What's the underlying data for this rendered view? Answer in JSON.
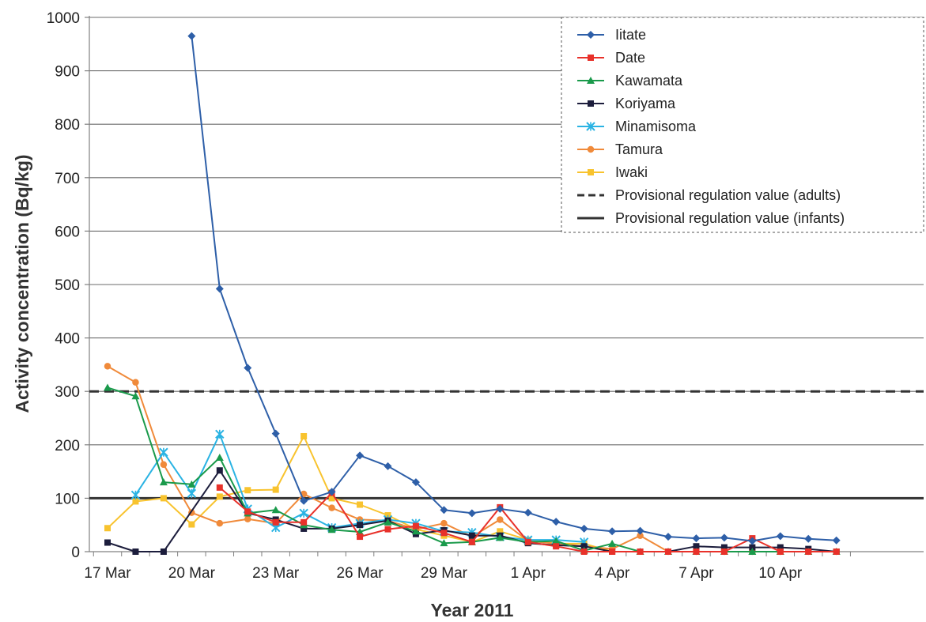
{
  "chart_data": {
    "type": "line",
    "title": "",
    "xlabel": "Year 2011",
    "ylabel": "Activity concentration (Bq/kg)",
    "ylim": [
      0,
      1000
    ],
    "yticks": [
      0,
      100,
      200,
      300,
      400,
      500,
      600,
      700,
      800,
      900,
      1000
    ],
    "x_start_date": "2011-03-17",
    "x_end_date": "2011-04-12",
    "xticks": [
      {
        "date": "2011-03-17",
        "label": "17 Mar"
      },
      {
        "date": "2011-03-20",
        "label": "20 Mar"
      },
      {
        "date": "2011-03-23",
        "label": "23 Mar"
      },
      {
        "date": "2011-03-26",
        "label": "26 Mar"
      },
      {
        "date": "2011-03-29",
        "label": "29 Mar"
      },
      {
        "date": "2011-04-01",
        "label": "1 Apr"
      },
      {
        "date": "2011-04-04",
        "label": "4 Apr"
      },
      {
        "date": "2011-04-07",
        "label": "7 Apr"
      },
      {
        "date": "2011-04-10",
        "label": "10 Apr"
      }
    ],
    "grid": true,
    "legend_position": "top-right",
    "series": [
      {
        "name": "Iitate",
        "color": "#2e5fa8",
        "marker": "diamond",
        "x": [
          "2011-03-20",
          "2011-03-21",
          "2011-03-22",
          "2011-03-23",
          "2011-03-24",
          "2011-03-25",
          "2011-03-26",
          "2011-03-27",
          "2011-03-28",
          "2011-03-29",
          "2011-03-30",
          "2011-03-31",
          "2011-04-01",
          "2011-04-02",
          "2011-04-03",
          "2011-04-04",
          "2011-04-05",
          "2011-04-06",
          "2011-04-07",
          "2011-04-08",
          "2011-04-09",
          "2011-04-10",
          "2011-04-11",
          "2011-04-12"
        ],
        "y": [
          965,
          492,
          344,
          221,
          95,
          112,
          180,
          160,
          130,
          78,
          72,
          80,
          73,
          56,
          43,
          38,
          39,
          28,
          25,
          26,
          20,
          29,
          24,
          21
        ]
      },
      {
        "name": "Date",
        "color": "#e8312a",
        "marker": "square",
        "x": [
          "2011-03-21",
          "2011-03-22",
          "2011-03-23",
          "2011-03-24",
          "2011-03-25",
          "2011-03-26",
          "2011-03-27",
          "2011-03-28",
          "2011-03-29",
          "2011-03-30",
          "2011-03-31",
          "2011-04-01",
          "2011-04-02",
          "2011-04-03",
          "2011-04-04",
          "2011-04-05",
          "2011-04-06",
          "2011-04-07",
          "2011-04-08",
          "2011-04-09",
          "2011-04-10",
          "2011-04-11",
          "2011-04-12"
        ],
        "y": [
          120,
          75,
          55,
          55,
          110,
          28,
          42,
          48,
          35,
          18,
          83,
          18,
          10,
          0,
          0,
          0,
          0,
          0,
          0,
          25,
          0,
          0,
          0
        ]
      },
      {
        "name": "Kawamata",
        "color": "#1a9a4b",
        "marker": "triangle",
        "x": [
          "2011-03-17",
          "2011-03-18",
          "2011-03-19",
          "2011-03-20",
          "2011-03-21",
          "2011-03-22",
          "2011-03-23",
          "2011-03-24",
          "2011-03-25",
          "2011-03-26",
          "2011-03-27",
          "2011-03-28",
          "2011-03-29",
          "2011-03-30",
          "2011-03-31",
          "2011-04-01",
          "2011-04-02",
          "2011-04-03",
          "2011-04-04",
          "2011-04-05",
          "2011-04-06",
          "2011-04-07",
          "2011-04-08",
          "2011-04-09",
          "2011-04-10",
          "2011-04-11",
          "2011-04-12"
        ],
        "y": [
          307,
          291,
          130,
          126,
          176,
          72,
          78,
          50,
          41,
          37,
          55,
          38,
          16,
          18,
          26,
          18,
          20,
          2,
          15,
          0,
          0,
          0,
          0,
          0,
          0,
          0,
          0
        ]
      },
      {
        "name": "Koriyama",
        "color": "#1c1d3c",
        "marker": "square",
        "x": [
          "2011-03-17",
          "2011-03-18",
          "2011-03-19",
          "2011-03-21",
          "2011-03-22",
          "2011-03-23",
          "2011-03-24",
          "2011-03-25",
          "2011-03-26",
          "2011-03-27",
          "2011-03-28",
          "2011-03-29",
          "2011-03-30",
          "2011-03-31",
          "2011-04-01",
          "2011-04-02",
          "2011-04-03",
          "2011-04-04",
          "2011-04-05",
          "2011-04-06",
          "2011-04-07",
          "2011-04-08",
          "2011-04-09",
          "2011-04-10",
          "2011-04-11",
          "2011-04-12"
        ],
        "y": [
          17,
          0,
          0,
          152,
          72,
          60,
          43,
          43,
          50,
          58,
          33,
          40,
          30,
          30,
          16,
          12,
          10,
          0,
          0,
          0,
          10,
          8,
          8,
          8,
          5,
          0
        ]
      },
      {
        "name": "Minamisoma",
        "color": "#2ab3e3",
        "marker": "x",
        "x": [
          "2011-03-18",
          "2011-03-19",
          "2011-03-20",
          "2011-03-21",
          "2011-03-22",
          "2011-03-23",
          "2011-03-24",
          "2011-03-25",
          "2011-03-26",
          "2011-03-27",
          "2011-03-28",
          "2011-03-29",
          "2011-03-30",
          "2011-03-31",
          "2011-04-01",
          "2011-04-02",
          "2011-04-03"
        ],
        "y": [
          106,
          186,
          109,
          220,
          80,
          45,
          72,
          45,
          53,
          60,
          53,
          38,
          36,
          28,
          22,
          22,
          18
        ]
      },
      {
        "name": "Tamura",
        "color": "#f08a3a",
        "marker": "circle",
        "x": [
          "2011-03-17",
          "2011-03-18",
          "2011-03-19",
          "2011-03-20",
          "2011-03-21",
          "2011-03-22",
          "2011-03-23",
          "2011-03-24",
          "2011-03-25",
          "2011-03-26",
          "2011-03-27",
          "2011-03-28",
          "2011-03-29",
          "2011-03-30",
          "2011-03-31",
          "2011-04-01",
          "2011-04-02",
          "2011-04-03",
          "2011-04-04",
          "2011-04-05",
          "2011-04-06",
          "2011-04-07",
          "2011-04-08",
          "2011-04-09",
          "2011-04-10",
          "2011-04-11",
          "2011-04-12"
        ],
        "y": [
          347,
          317,
          163,
          73,
          53,
          61,
          53,
          108,
          82,
          60,
          58,
          42,
          53,
          28,
          60,
          20,
          15,
          10,
          5,
          30,
          0,
          0,
          0,
          0,
          0,
          0,
          0
        ]
      },
      {
        "name": "Iwaki",
        "color": "#f8c32e",
        "marker": "square",
        "x": [
          "2011-03-17",
          "2011-03-18",
          "2011-03-19",
          "2011-03-20",
          "2011-03-21",
          "2011-03-22",
          "2011-03-23",
          "2011-03-24",
          "2011-03-25",
          "2011-03-26",
          "2011-03-27",
          "2011-03-28",
          "2011-03-29",
          "2011-03-30",
          "2011-03-31",
          "2011-04-01",
          "2011-04-02",
          "2011-04-03",
          "2011-04-04",
          "2011-04-05",
          "2011-04-06",
          "2011-04-07",
          "2011-04-08",
          "2011-04-09",
          "2011-04-10",
          "2011-04-11",
          "2011-04-12"
        ],
        "y": [
          44,
          94,
          100,
          51,
          103,
          115,
          116,
          216,
          100,
          88,
          68,
          42,
          30,
          18,
          38,
          22,
          15,
          15,
          0,
          0,
          0,
          0,
          0,
          0,
          0,
          0,
          0
        ]
      }
    ],
    "reference_lines": [
      {
        "name": "Provisional regulation value (adults)",
        "value": 300,
        "style": "dashed",
        "color": "#333333"
      },
      {
        "name": "Provisional regulation value (infants)",
        "value": 100,
        "style": "solid",
        "color": "#333333"
      }
    ]
  }
}
